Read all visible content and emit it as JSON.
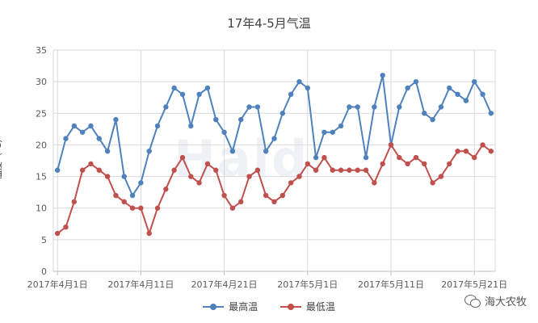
{
  "chart_data": {
    "type": "line",
    "title": "17年4-5月气温",
    "ylabel": "温度（℃）",
    "xlabel": "",
    "ylim": [
      0,
      35
    ],
    "yticks": [
      0,
      5,
      10,
      15,
      20,
      25,
      30,
      35
    ],
    "grid": true,
    "legend_position": "bottom",
    "x_tick_labels": [
      "2017年4月1日",
      "2017年4月11日",
      "2017年4月21日",
      "2017年5月1日",
      "2017年5月11日",
      "2017年5月21日"
    ],
    "series": [
      {
        "name": "最高温",
        "color": "#4f81bd",
        "values": [
          16,
          21,
          23,
          22,
          23,
          21,
          19,
          24,
          15,
          12,
          14,
          19,
          23,
          26,
          29,
          28,
          23,
          28,
          29,
          24,
          22,
          19,
          24,
          26,
          26,
          19,
          21,
          25,
          28,
          30,
          29,
          18,
          22,
          22,
          23,
          26,
          26,
          18,
          26,
          31,
          20,
          26,
          29,
          30,
          25,
          24,
          26,
          29,
          28,
          27,
          30,
          28,
          25
        ]
      },
      {
        "name": "最低温",
        "color": "#c0504d",
        "values": [
          6,
          7,
          11,
          16,
          17,
          16,
          15,
          12,
          11,
          10,
          10,
          6,
          10,
          13,
          16,
          18,
          15,
          14,
          17,
          16,
          12,
          10,
          11,
          15,
          16,
          12,
          11,
          12,
          14,
          15,
          17,
          16,
          18,
          16,
          16,
          16,
          16,
          16,
          14,
          17,
          20,
          18,
          17,
          18,
          17,
          14,
          15,
          17,
          19,
          19,
          18,
          20,
          19
        ]
      }
    ]
  },
  "watermark": "Hald",
  "source_badge": "海大农牧",
  "icons": {
    "source": "wechat-icon"
  }
}
